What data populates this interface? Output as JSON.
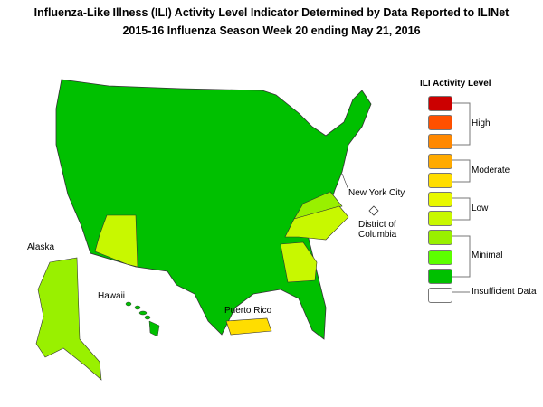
{
  "title": "Influenza-Like Illness (ILI) Activity Level Indicator Determined by Data Reported to ILINet",
  "subtitle": "2015-16  Influenza Season Week  20 ending May 21, 2016",
  "legend": {
    "title": "ILI Activity Level",
    "levels": [
      {
        "color": "#cc0000"
      },
      {
        "color": "#ff5000"
      },
      {
        "color": "#ff8800"
      },
      {
        "color": "#ffaa00"
      },
      {
        "color": "#ffdd00"
      },
      {
        "color": "#e8f800"
      },
      {
        "color": "#c8f800"
      },
      {
        "color": "#99f000"
      },
      {
        "color": "#5cff00"
      },
      {
        "color": "#00c000"
      },
      {
        "color": "#ffffff"
      }
    ],
    "groups": [
      "High",
      "Moderate",
      "Low",
      "Minimal",
      "Insufficient Data"
    ]
  },
  "labels": {
    "nyc": "New York City",
    "dc": "District of Columbia",
    "alaska": "Alaska",
    "hawaii": "Hawaii",
    "pr": "Puerto Rico"
  },
  "regions": {
    "default": {
      "level": "Minimal",
      "color": "#00c000"
    },
    "arizona": {
      "color": "#c8f800"
    },
    "virginia": {
      "color": "#99f000"
    },
    "north_carolina": {
      "color": "#c8f800"
    },
    "georgia": {
      "color": "#c8f800"
    },
    "alaska": {
      "color": "#99f000"
    },
    "puerto_rico": {
      "color": "#ffdd00"
    },
    "dc": {
      "color": "#ffffff"
    }
  }
}
